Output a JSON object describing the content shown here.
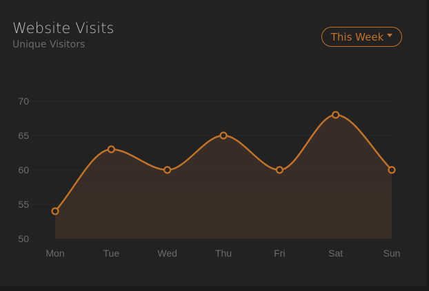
{
  "header": {
    "title": "Website Visits",
    "subtitle": "Unique Visitors",
    "range_button_label": "This Week"
  },
  "colors": {
    "line": "#c2732b",
    "area": "#3a2d26",
    "card_background": "#222222",
    "grid": "#2a2a2a",
    "point_fill": "#2a231f"
  },
  "icons": {
    "dropdown": "caret-down-icon"
  },
  "chart_data": {
    "type": "area",
    "title": "Website Visits",
    "subtitle": "Unique Visitors",
    "categories": [
      "Mon",
      "Tue",
      "Wed",
      "Thu",
      "Fri",
      "Sat",
      "Sun"
    ],
    "series": [
      {
        "values": [
          54,
          63,
          60,
          65,
          60,
          68,
          60
        ]
      }
    ],
    "xlabel": "",
    "ylabel": "",
    "ylim": [
      50,
      70
    ],
    "yticks": [
      50,
      55,
      60,
      65,
      70
    ],
    "smooth": true,
    "markers": "hollow-circle",
    "grid": false,
    "legend": "none"
  }
}
